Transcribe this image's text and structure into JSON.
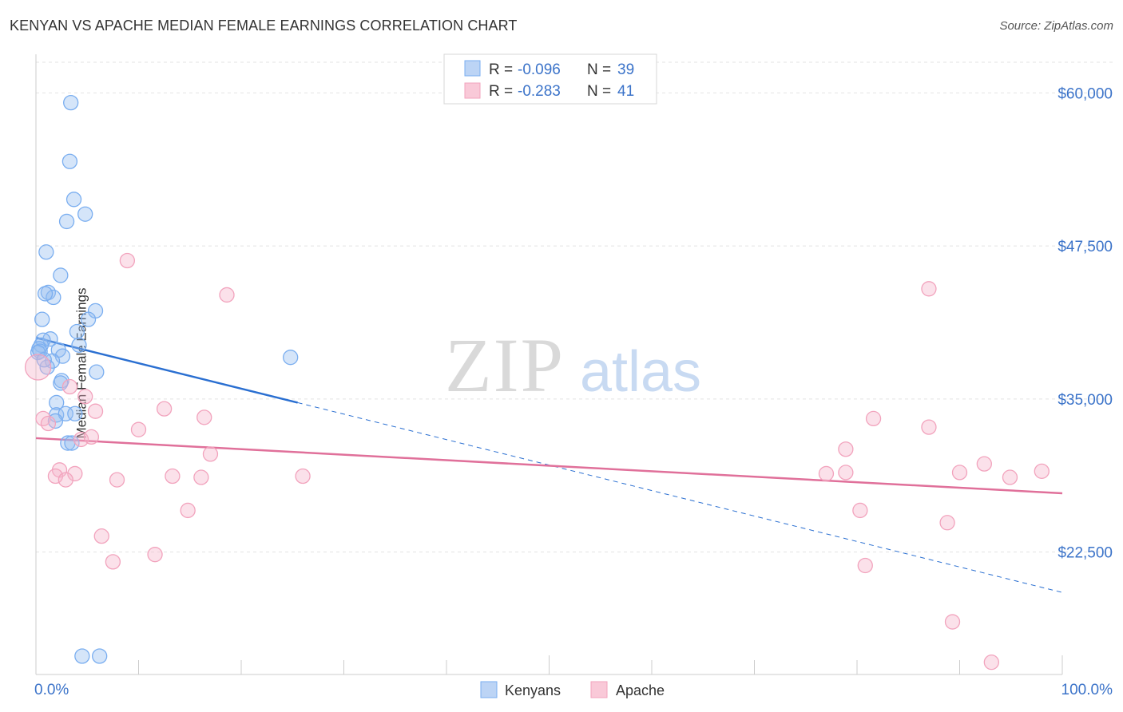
{
  "title": "KENYAN VS APACHE MEDIAN FEMALE EARNINGS CORRELATION CHART",
  "source": "Source: ZipAtlas.com",
  "watermark": {
    "zip": "ZIP",
    "atlas": "atlas"
  },
  "legend_top": [
    {
      "r_label": "R = ",
      "r_value": "-0.096",
      "n_label": "N = ",
      "n_value": "39"
    },
    {
      "r_label": "R = ",
      "r_value": "-0.283",
      "n_label": "N = ",
      "n_value": "41"
    }
  ],
  "chart_data": {
    "type": "scatter",
    "title": "KENYAN VS APACHE MEDIAN FEMALE EARNINGS CORRELATION CHART",
    "xlabel": "",
    "ylabel": "Median Female Earnings",
    "xlim": [
      0,
      100
    ],
    "ylim": [
      12500,
      62500
    ],
    "x_tick_labels": [
      "0.0%",
      "100.0%"
    ],
    "y_ticks": [
      22500,
      35000,
      47500,
      60000
    ],
    "y_tick_labels": [
      "$22,500",
      "$35,000",
      "$47,500",
      "$60,000"
    ],
    "grid": true,
    "colors": {
      "Kenyans": "#7aaef0",
      "Apache": "#f2a3bd",
      "kenyans_line": "#2a6fd1",
      "apache_line": "#e0709a",
      "axis_text": "#3b73c9"
    },
    "series": [
      {
        "name": "Kenyans",
        "points": [
          [
            3.4,
            59.2
          ],
          [
            3.3,
            54.4
          ],
          [
            3.7,
            51.3
          ],
          [
            4.8,
            50.1
          ],
          [
            3.0,
            49.5
          ],
          [
            1.0,
            47.0
          ],
          [
            2.4,
            45.1
          ],
          [
            1.2,
            43.7
          ],
          [
            1.7,
            43.3
          ],
          [
            0.9,
            43.6
          ],
          [
            5.8,
            42.2
          ],
          [
            0.6,
            41.5
          ],
          [
            5.1,
            41.5
          ],
          [
            4.0,
            40.5
          ],
          [
            1.4,
            39.9
          ],
          [
            0.7,
            39.8
          ],
          [
            0.5,
            39.4
          ],
          [
            0.3,
            39.1
          ],
          [
            4.2,
            39.4
          ],
          [
            2.2,
            39.0
          ],
          [
            0.4,
            38.9
          ],
          [
            2.6,
            38.5
          ],
          [
            1.6,
            38.1
          ],
          [
            1.1,
            37.6
          ],
          [
            24.8,
            38.4
          ],
          [
            5.9,
            37.2
          ],
          [
            2.5,
            36.5
          ],
          [
            2.4,
            36.3
          ],
          [
            2.0,
            34.7
          ],
          [
            2.0,
            33.7
          ],
          [
            2.9,
            33.8
          ],
          [
            3.8,
            33.8
          ],
          [
            1.9,
            33.2
          ],
          [
            3.1,
            31.4
          ],
          [
            3.5,
            31.4
          ],
          [
            4.5,
            14.0
          ],
          [
            6.2,
            14.0
          ],
          [
            0.2,
            38.8
          ],
          [
            0.8,
            38.2
          ]
        ]
      },
      {
        "name": "Apache",
        "points": [
          [
            0.2,
            37.6
          ],
          [
            0.7,
            33.4
          ],
          [
            1.2,
            33.0
          ],
          [
            8.9,
            46.3
          ],
          [
            18.6,
            43.5
          ],
          [
            3.3,
            36.0
          ],
          [
            4.8,
            35.2
          ],
          [
            5.8,
            34.0
          ],
          [
            12.5,
            34.2
          ],
          [
            16.4,
            33.5
          ],
          [
            10.0,
            32.5
          ],
          [
            4.4,
            31.7
          ],
          [
            5.4,
            31.9
          ],
          [
            17.0,
            30.5
          ],
          [
            2.3,
            29.2
          ],
          [
            3.8,
            28.9
          ],
          [
            1.9,
            28.7
          ],
          [
            2.9,
            28.4
          ],
          [
            7.9,
            28.4
          ],
          [
            13.3,
            28.7
          ],
          [
            16.1,
            28.6
          ],
          [
            26.0,
            28.7
          ],
          [
            14.8,
            25.9
          ],
          [
            6.4,
            23.8
          ],
          [
            11.6,
            22.3
          ],
          [
            7.5,
            21.7
          ],
          [
            87.0,
            44.0
          ],
          [
            81.6,
            33.4
          ],
          [
            87.0,
            32.7
          ],
          [
            78.9,
            30.9
          ],
          [
            92.4,
            29.7
          ],
          [
            98.0,
            29.1
          ],
          [
            77.0,
            28.9
          ],
          [
            78.9,
            29.0
          ],
          [
            90.0,
            29.0
          ],
          [
            94.9,
            28.6
          ],
          [
            80.3,
            25.9
          ],
          [
            88.8,
            24.9
          ],
          [
            80.8,
            21.4
          ],
          [
            89.3,
            16.8
          ],
          [
            93.1,
            13.5
          ]
        ]
      }
    ],
    "trend_lines": [
      {
        "series": "Kenyans",
        "solid": [
          [
            0,
            40.0
          ],
          [
            25.5,
            34.7
          ]
        ],
        "dashed": [
          [
            25.5,
            34.7
          ],
          [
            100,
            19.2
          ]
        ]
      },
      {
        "series": "Apache",
        "solid": [
          [
            0,
            31.8
          ],
          [
            100,
            27.3
          ]
        ]
      }
    ],
    "legend": [
      "Kenyans",
      "Apache"
    ],
    "legend_position": "bottom-center",
    "value_units_note": "point y values in thousands of dollars"
  }
}
